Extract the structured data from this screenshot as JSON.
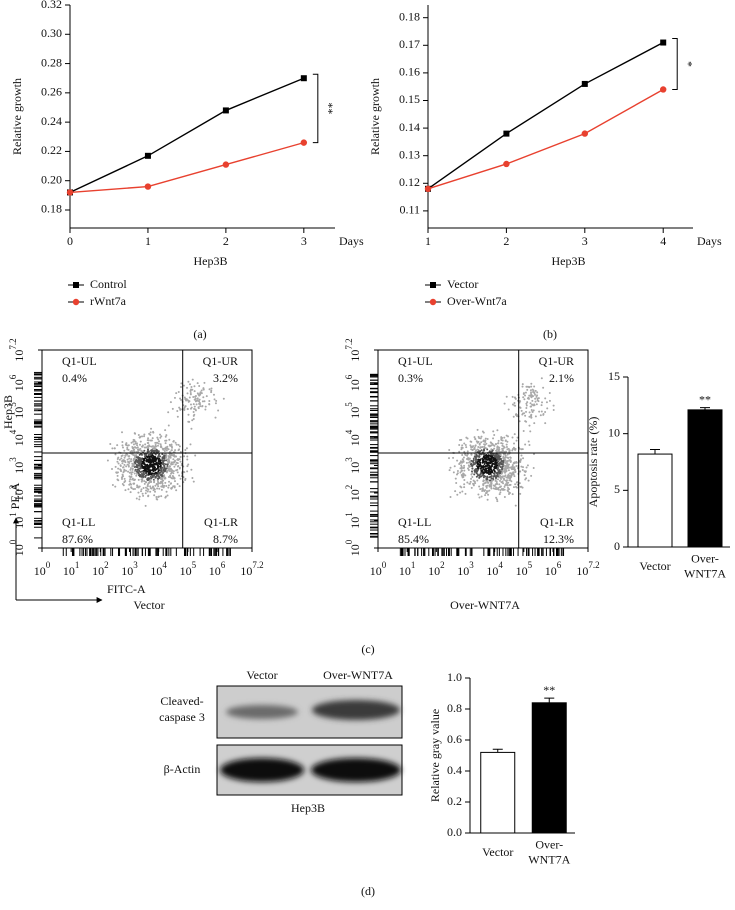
{
  "panel_labels": [
    "(a)",
    "(b)",
    "(c)",
    "(d)"
  ],
  "chart_data": [
    {
      "type": "line",
      "y_label": "Relative growth",
      "x_label": "Hep3B",
      "x_unit_label": "Days",
      "annotation": "**",
      "x": [
        0,
        1,
        2,
        3
      ],
      "xlim": [
        0,
        3.4
      ],
      "xticks": [
        0,
        1,
        2,
        3
      ],
      "ylim": [
        0.1677,
        0.32
      ],
      "yticks": [
        0.18,
        {
          "value": 0.2,
          "label": "0.20"
        },
        0.22,
        0.24,
        0.26,
        0.28,
        {
          "value": 0.3,
          "label": "0.30"
        },
        0.32
      ],
      "series": [
        {
          "name": "Control",
          "color": "#000000",
          "marker": "square",
          "values": [
            0.192,
            0.217,
            0.248,
            0.27
          ]
        },
        {
          "name": "rWnt7a",
          "color": "#e8412f",
          "marker": "circle",
          "values": [
            0.192,
            0.196,
            0.211,
            0.226
          ]
        }
      ]
    },
    {
      "type": "line",
      "y_label": "Relative growth",
      "x_label": "Hep3B",
      "x_unit_label": "Days",
      "annotation": "*",
      "x": [
        1,
        2,
        3,
        4
      ],
      "xlim": [
        1,
        4.38
      ],
      "xticks": [
        1,
        2,
        3,
        4
      ],
      "ylim": [
        0.1038,
        0.1846
      ],
      "yticks": [
        0.11,
        0.12,
        0.13,
        0.14,
        0.15,
        0.16,
        0.17,
        0.18
      ],
      "series": [
        {
          "name": "Vector",
          "color": "#000000",
          "marker": "square",
          "values": [
            0.118,
            0.138,
            0.156,
            0.171
          ]
        },
        {
          "name": "Over-Wnt7a",
          "color": "#e8412f",
          "marker": "circle",
          "values": [
            0.118,
            0.127,
            0.138,
            0.154
          ]
        }
      ]
    },
    {
      "type": "bar",
      "y_label": "Apoptosis rate (%)",
      "annotation": "**",
      "categories": [
        "Vector",
        "Over-WNT7A"
      ],
      "values": [
        8.2,
        12.1
      ],
      "errors": [
        0.4,
        0.2
      ],
      "colors": [
        "#ffffff",
        "#000000"
      ],
      "ylim": [
        0,
        15
      ],
      "yticks": [
        0,
        5,
        10,
        15
      ]
    },
    {
      "type": "bar",
      "y_label": "Relative gray value",
      "annotation": "**",
      "categories": [
        "Vector",
        "Over-WNT7A"
      ],
      "values": [
        0.52,
        0.84
      ],
      "errors": [
        0.02,
        0.03
      ],
      "colors": [
        "#ffffff",
        "#000000"
      ],
      "ylim": [
        0,
        1
      ],
      "yticks": [
        {
          "value": 0,
          "label": "0.0"
        },
        0.2,
        0.4,
        0.6,
        0.8,
        {
          "value": 1,
          "label": "1.0"
        }
      ]
    }
  ],
  "flow_cytometry": {
    "side_label": "Hep3B",
    "x_label": "FITC-A",
    "y_label": "PE-A",
    "tick_base": "10",
    "tick_exponents": [
      0,
      1,
      2,
      3,
      4,
      5,
      6,
      7.2
    ],
    "plots": [
      {
        "title": "Vector",
        "quadrants": [
          {
            "name": "Q1-UL",
            "percent": "0.4%"
          },
          {
            "name": "Q1-UR",
            "percent": "3.2%"
          },
          {
            "name": "Q1-LL",
            "percent": "87.6%"
          },
          {
            "name": "Q1-LR",
            "percent": "8.7%"
          }
        ]
      },
      {
        "title": "Over-WNT7A",
        "quadrants": [
          {
            "name": "Q1-UL",
            "percent": "0.3%"
          },
          {
            "name": "Q1-UR",
            "percent": "2.1%"
          },
          {
            "name": "Q1-LL",
            "percent": "85.4%"
          },
          {
            "name": "Q1-LR",
            "percent": "12.3%"
          }
        ]
      }
    ]
  },
  "western_blot": {
    "columns": [
      "Vector",
      "Over-WNT7A"
    ],
    "rows": [
      "Cleaved-caspase 3",
      "β-Actin"
    ],
    "caption": "Hep3B"
  }
}
